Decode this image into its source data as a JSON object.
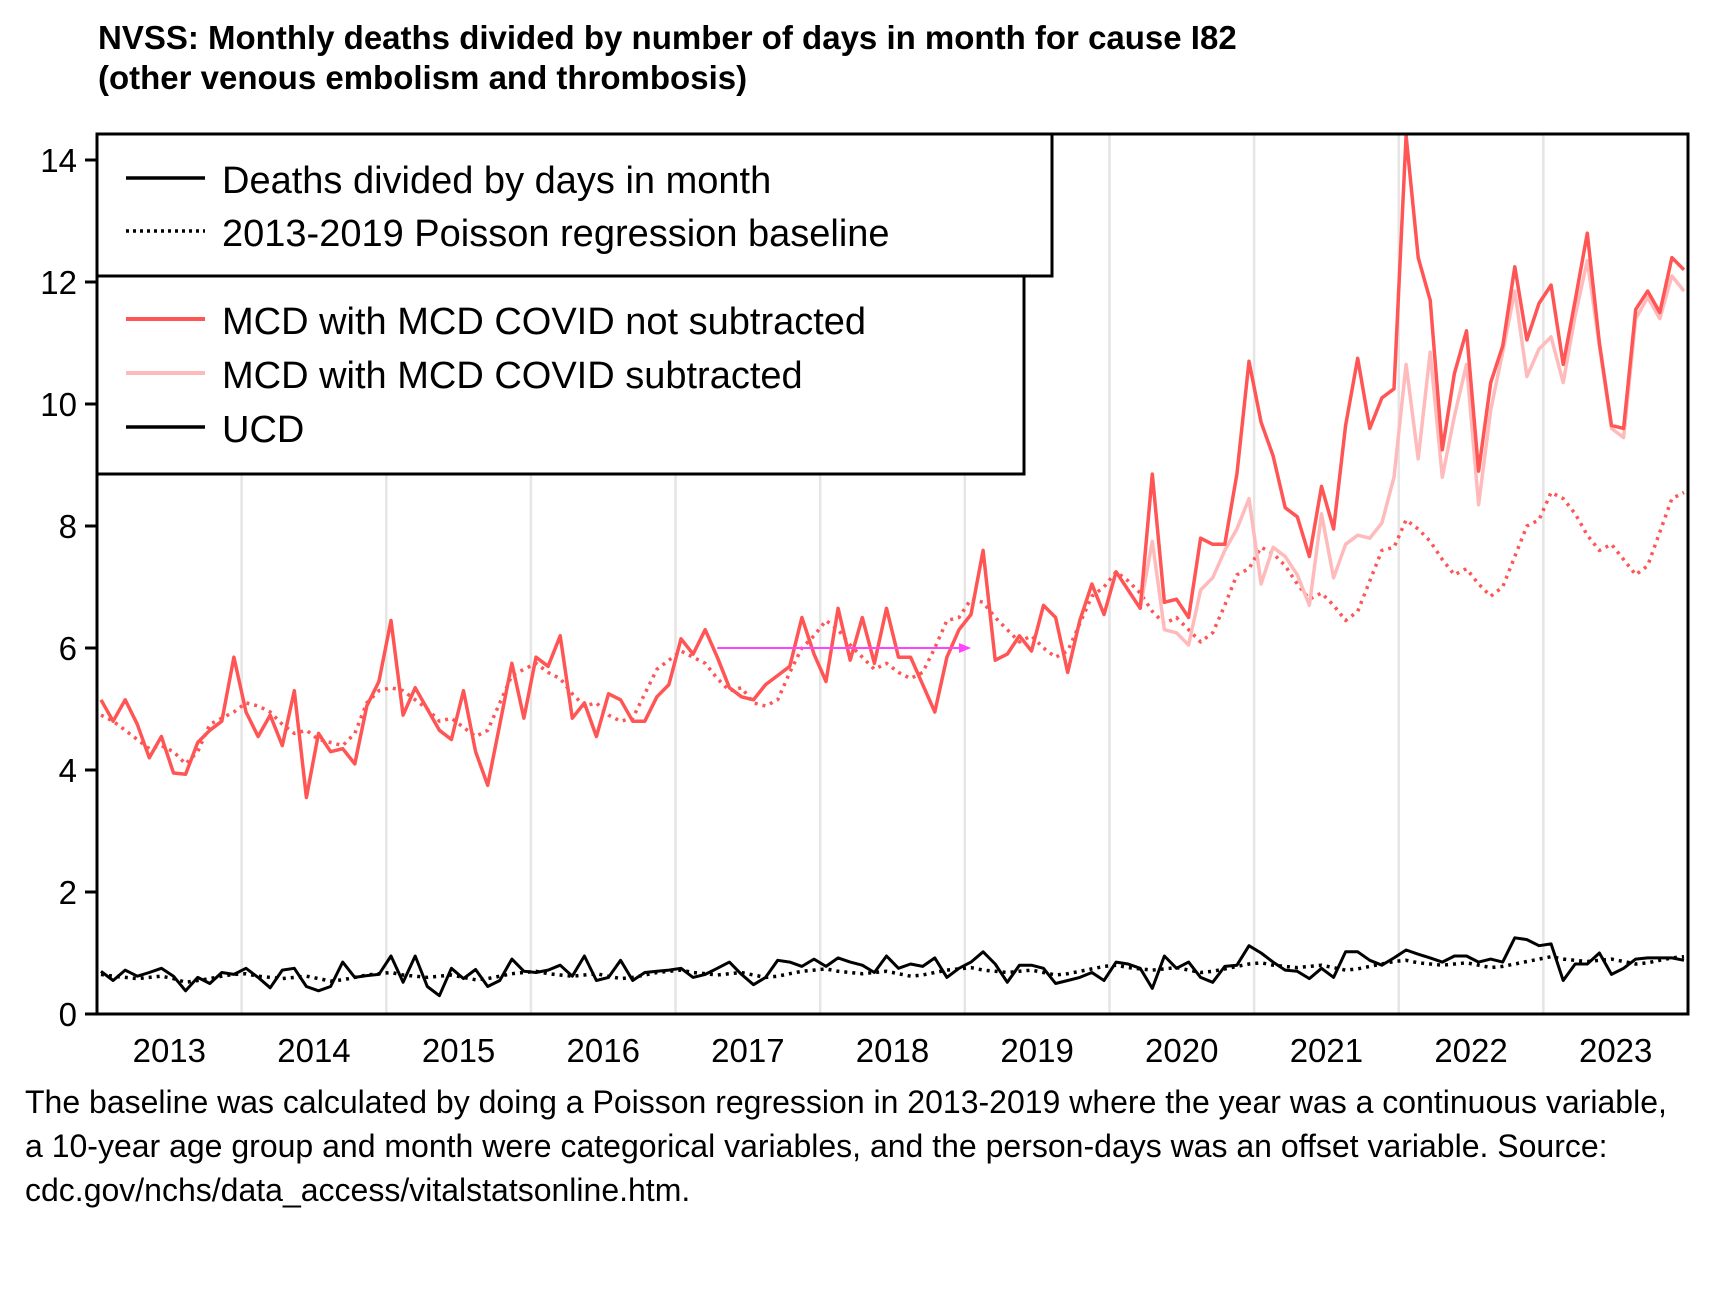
{
  "title_line1": "NVSS: Monthly deaths divided by number of days in month for cause I82",
  "title_line2": "(other venous embolism and thrombosis)",
  "caption": "The baseline was calculated by doing a Poisson regression in 2013-2019 where the year was a continuous variable, a 10-year age group and month were categorical variables, and the person-days was an offset variable. Source: cdc.gov/nchs/data_access/vitalstatsonline.htm.",
  "colors": {
    "mcd": "#ff5555",
    "mcd_sub": "#ffbbbb",
    "ucd": "#000000",
    "arrow": "#ff44ff",
    "grid": "#e5e5e5"
  },
  "chart_data": {
    "type": "line",
    "title": "NVSS: Monthly deaths divided by number of days in month for cause I82 (other venous embolism and thrombosis)",
    "xlabel": "",
    "ylabel": "",
    "x_start": "2013-01",
    "x_end": "2023-12",
    "frequency": "monthly",
    "xticks": [
      "2013",
      "2014",
      "2015",
      "2016",
      "2017",
      "2018",
      "2019",
      "2020",
      "2021",
      "2022",
      "2023"
    ],
    "yticks": [
      0,
      2,
      4,
      6,
      8,
      10,
      12,
      14
    ],
    "ylim": [
      0,
      14.4
    ],
    "grid": "vertical lines at year boundaries",
    "legend": {
      "placement": "top-left",
      "style_entries": [
        {
          "label": "Deaths divided by days in month",
          "style": "solid"
        },
        {
          "label": "2013-2019 Poisson regression baseline",
          "style": "dotted"
        }
      ],
      "color_entries": [
        {
          "label": "MCD with MCD COVID not subtracted",
          "color": "#ff5555"
        },
        {
          "label": "MCD with MCD COVID subtracted",
          "color": "#ffbbbb"
        },
        {
          "label": "UCD",
          "color": "#000000"
        }
      ]
    },
    "annotation": {
      "type": "arrow",
      "color": "#ff44ff",
      "from": "2017-04",
      "to": "2019-01",
      "y": 6.0
    },
    "series": [
      {
        "name": "MCD with MCD COVID not subtracted",
        "style": "solid",
        "color": "#ff5555",
        "values": [
          5.15,
          4.8,
          5.15,
          4.75,
          4.2,
          4.55,
          3.95,
          3.93,
          4.45,
          4.65,
          4.8,
          5.85,
          4.95,
          4.55,
          4.9,
          4.4,
          5.3,
          3.55,
          4.6,
          4.3,
          4.35,
          4.1,
          5.05,
          5.45,
          6.45,
          4.9,
          5.35,
          5.0,
          4.65,
          4.5,
          5.3,
          4.3,
          3.75,
          4.75,
          5.75,
          4.85,
          5.85,
          5.7,
          6.2,
          4.85,
          5.1,
          4.55,
          5.25,
          5.15,
          4.8,
          4.8,
          5.2,
          5.4,
          6.15,
          5.9,
          6.3,
          5.85,
          5.35,
          5.2,
          5.15,
          5.4,
          5.55,
          5.7,
          6.5,
          5.9,
          5.45,
          6.65,
          5.8,
          6.5,
          5.75,
          6.65,
          5.85,
          5.85,
          5.4,
          4.95,
          5.85,
          6.3,
          6.55,
          7.6,
          5.8,
          5.9,
          6.2,
          5.95,
          6.7,
          6.5,
          5.6,
          6.45,
          7.05,
          6.55,
          7.25,
          6.95,
          6.65,
          8.85,
          6.75,
          6.8,
          6.5,
          7.8,
          7.7,
          7.7,
          8.85,
          10.7,
          9.7,
          9.15,
          8.3,
          8.15,
          7.5,
          8.65,
          7.95,
          9.65,
          10.75,
          9.6,
          10.1,
          10.25,
          14.4,
          12.4,
          11.7,
          9.25,
          10.5,
          11.2,
          8.9,
          10.35,
          10.95,
          12.25,
          11.05,
          11.65,
          11.95,
          10.65,
          11.7,
          12.8,
          11.0,
          9.65,
          9.6,
          11.55,
          11.85,
          11.5,
          12.4,
          12.2
        ]
      },
      {
        "name": "MCD with MCD COVID subtracted",
        "style": "solid",
        "color": "#ffbbbb",
        "start": "2020-03",
        "values": [
          6.65,
          7.75,
          6.3,
          6.25,
          6.05,
          6.95,
          7.15,
          7.6,
          7.95,
          8.45,
          7.05,
          7.65,
          7.5,
          7.2,
          6.7,
          8.2,
          7.15,
          7.7,
          7.85,
          7.8,
          8.05,
          8.8,
          10.65,
          9.1,
          10.85,
          8.8,
          9.8,
          10.65,
          8.35,
          9.9,
          10.85,
          11.85,
          10.45,
          10.9,
          11.1,
          10.35,
          11.45,
          12.35,
          10.95,
          9.6,
          9.45,
          11.4,
          11.75,
          11.4,
          12.1,
          11.85
        ]
      },
      {
        "name": "MCD baseline",
        "style": "dotted",
        "color": "#ff5555",
        "values": [
          4.9,
          4.8,
          4.65,
          4.5,
          4.35,
          4.4,
          4.3,
          4.1,
          4.3,
          4.75,
          4.85,
          4.95,
          5.1,
          5.05,
          4.95,
          4.75,
          4.6,
          4.65,
          4.5,
          4.45,
          4.4,
          4.6,
          5.1,
          5.3,
          5.35,
          5.3,
          5.15,
          5.0,
          4.8,
          4.85,
          4.7,
          4.55,
          4.65,
          5.1,
          5.55,
          5.65,
          5.75,
          5.6,
          5.5,
          5.25,
          5.05,
          5.1,
          4.9,
          4.8,
          4.85,
          5.25,
          5.65,
          5.8,
          5.95,
          5.85,
          5.75,
          5.5,
          5.3,
          5.35,
          5.1,
          5.05,
          5.15,
          5.6,
          6.0,
          6.2,
          6.45,
          6.3,
          6.05,
          5.85,
          5.65,
          5.75,
          5.6,
          5.5,
          5.6,
          6.0,
          6.45,
          6.5,
          6.8,
          6.75,
          6.5,
          6.3,
          6.1,
          6.2,
          6.0,
          5.85,
          5.95,
          6.4,
          6.85,
          7.0,
          7.25,
          7.1,
          6.9,
          6.6,
          6.4,
          6.5,
          6.3,
          6.1,
          6.25,
          6.7,
          7.2,
          7.3,
          7.65,
          7.55,
          7.35,
          7.05,
          6.8,
          6.9,
          6.7,
          6.45,
          6.6,
          7.1,
          7.6,
          7.65,
          8.1,
          7.95,
          7.75,
          7.45,
          7.2,
          7.3,
          7.05,
          6.85,
          7.0,
          7.5,
          8.0,
          8.1,
          8.55,
          8.45,
          8.2,
          7.85,
          7.6,
          7.7,
          7.45,
          7.2,
          7.35,
          7.9,
          8.45,
          8.55
        ]
      },
      {
        "name": "UCD",
        "style": "solid",
        "color": "#000000",
        "values": [
          0.7,
          0.55,
          0.72,
          0.62,
          0.68,
          0.75,
          0.62,
          0.38,
          0.6,
          0.5,
          0.68,
          0.65,
          0.75,
          0.6,
          0.43,
          0.72,
          0.75,
          0.45,
          0.38,
          0.45,
          0.85,
          0.6,
          0.63,
          0.65,
          0.95,
          0.52,
          0.95,
          0.45,
          0.3,
          0.75,
          0.58,
          0.73,
          0.45,
          0.55,
          0.9,
          0.7,
          0.68,
          0.72,
          0.8,
          0.62,
          0.95,
          0.55,
          0.6,
          0.88,
          0.55,
          0.68,
          0.7,
          0.72,
          0.75,
          0.6,
          0.65,
          0.75,
          0.85,
          0.65,
          0.48,
          0.6,
          0.88,
          0.85,
          0.78,
          0.9,
          0.78,
          0.92,
          0.85,
          0.8,
          0.68,
          0.95,
          0.75,
          0.82,
          0.78,
          0.92,
          0.6,
          0.75,
          0.85,
          1.02,
          0.82,
          0.52,
          0.8,
          0.8,
          0.75,
          0.5,
          0.55,
          0.6,
          0.68,
          0.55,
          0.85,
          0.82,
          0.75,
          0.42,
          0.95,
          0.75,
          0.85,
          0.6,
          0.52,
          0.78,
          0.8,
          1.12,
          1.0,
          0.85,
          0.72,
          0.7,
          0.58,
          0.75,
          0.6,
          1.02,
          1.02,
          0.88,
          0.8,
          0.92,
          1.05,
          0.98,
          0.92,
          0.85,
          0.95,
          0.95,
          0.85,
          0.9,
          0.85,
          1.25,
          1.22,
          1.12,
          1.15,
          0.55,
          0.82,
          0.82,
          1.0,
          0.65,
          0.75,
          0.9,
          0.92,
          0.92,
          0.92,
          0.88
        ]
      },
      {
        "name": "UCD baseline",
        "style": "dotted",
        "color": "#000000",
        "values": [
          0.65,
          0.62,
          0.6,
          0.58,
          0.6,
          0.62,
          0.58,
          0.52,
          0.55,
          0.58,
          0.62,
          0.65,
          0.66,
          0.62,
          0.6,
          0.58,
          0.6,
          0.62,
          0.58,
          0.54,
          0.56,
          0.6,
          0.64,
          0.66,
          0.68,
          0.64,
          0.62,
          0.6,
          0.62,
          0.64,
          0.6,
          0.56,
          0.58,
          0.62,
          0.66,
          0.68,
          0.7,
          0.66,
          0.64,
          0.62,
          0.64,
          0.66,
          0.62,
          0.58,
          0.6,
          0.64,
          0.68,
          0.7,
          0.72,
          0.68,
          0.66,
          0.64,
          0.66,
          0.68,
          0.64,
          0.6,
          0.62,
          0.66,
          0.7,
          0.72,
          0.74,
          0.7,
          0.68,
          0.66,
          0.68,
          0.7,
          0.66,
          0.62,
          0.64,
          0.68,
          0.72,
          0.74,
          0.76,
          0.72,
          0.7,
          0.68,
          0.7,
          0.72,
          0.68,
          0.64,
          0.66,
          0.7,
          0.74,
          0.78,
          0.8,
          0.76,
          0.74,
          0.72,
          0.74,
          0.76,
          0.72,
          0.68,
          0.7,
          0.74,
          0.78,
          0.82,
          0.84,
          0.8,
          0.78,
          0.76,
          0.78,
          0.8,
          0.76,
          0.72,
          0.74,
          0.78,
          0.82,
          0.86,
          0.88,
          0.84,
          0.82,
          0.8,
          0.82,
          0.84,
          0.8,
          0.76,
          0.78,
          0.82,
          0.86,
          0.9,
          0.94,
          0.9,
          0.88,
          0.86,
          0.88,
          0.9,
          0.86,
          0.82,
          0.84,
          0.88,
          0.92,
          0.94
        ]
      }
    ]
  }
}
